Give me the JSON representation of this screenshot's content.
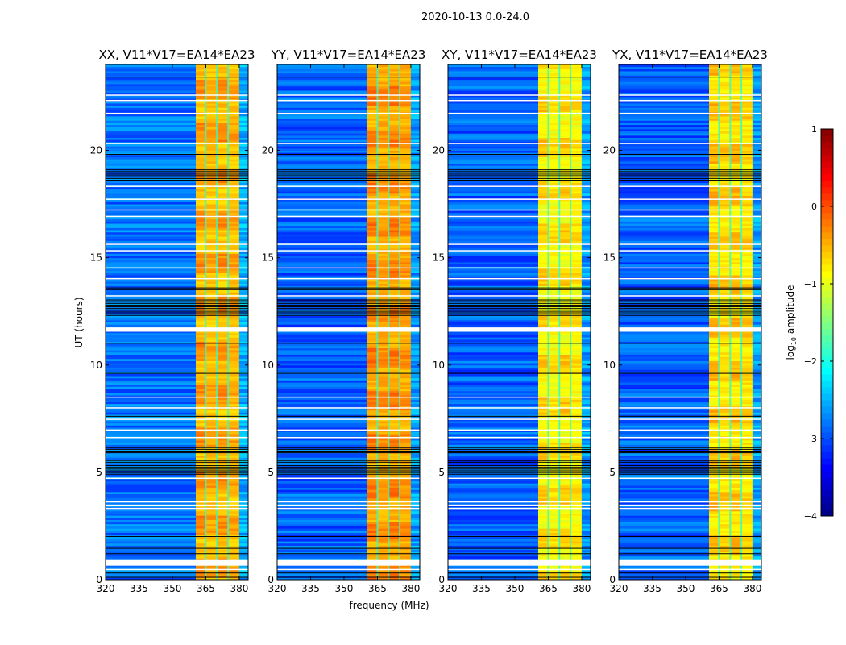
{
  "suptitle": "2020-10-13 0.0-24.0",
  "chart_data": {
    "type": "heatmap",
    "xlabel": "frequency (MHz)",
    "ylabel": "UT (hours)",
    "xlim": [
      320,
      384
    ],
    "ylim": [
      0,
      24
    ],
    "xticks": [
      "320",
      "335",
      "350",
      "365",
      "380"
    ],
    "xtick_values": [
      320,
      335,
      350,
      365,
      380
    ],
    "yticks": [
      "0",
      "5",
      "10",
      "15",
      "20"
    ],
    "ytick_values": [
      0,
      5,
      10,
      15,
      20
    ],
    "colorbar": {
      "label_prefix": "log",
      "label_sub": "10",
      "label_suffix": " amplitude",
      "range": [
        -4,
        1
      ],
      "ticks": [
        "1",
        "0",
        "−1",
        "−2",
        "−3",
        "−4"
      ],
      "tick_values": [
        1,
        0,
        -1,
        -2,
        -3,
        -4
      ],
      "colormap": "jet"
    },
    "panels": [
      {
        "title": "XX, V11*V17=EA14*EA23",
        "background_level": -2.8,
        "band_level": -0.6
      },
      {
        "title": "YY, V11*V17=EA14*EA23",
        "background_level": -2.9,
        "band_level": -0.5
      },
      {
        "title": "XY, V11*V17=EA14*EA23",
        "background_level": -2.9,
        "band_level": -0.9
      },
      {
        "title": "YX, V11*V17=EA14*EA23",
        "background_level": -2.9,
        "band_level": -0.8
      }
    ],
    "rfi_band_mhz": [
      360.5,
      380
    ],
    "band_notches_mhz": [
      365,
      370,
      375
    ],
    "flagged_hours_white": [
      [
        0.65,
        0.95
      ],
      [
        0.45,
        0.5
      ],
      [
        3.3,
        3.35
      ],
      [
        3.45,
        3.5
      ],
      [
        3.6,
        3.65
      ],
      [
        4.7,
        4.75
      ],
      [
        6.6,
        6.65
      ],
      [
        6.95,
        7.0
      ],
      [
        7.45,
        7.5
      ],
      [
        8.0,
        8.03
      ],
      [
        8.5,
        8.53
      ],
      [
        11.55,
        11.75
      ],
      [
        13.2,
        13.25
      ],
      [
        14.0,
        14.05
      ],
      [
        14.5,
        14.55
      ],
      [
        15.3,
        15.35
      ],
      [
        15.6,
        15.65
      ],
      [
        16.9,
        16.95
      ],
      [
        17.2,
        17.25
      ],
      [
        17.7,
        17.75
      ],
      [
        18.3,
        18.35
      ],
      [
        20.3,
        20.35
      ],
      [
        21.7,
        21.75
      ],
      [
        22.3,
        22.35
      ],
      [
        22.55,
        22.6
      ]
    ],
    "flagged_hours_black": [
      [
        0.1,
        0.15
      ],
      [
        0.3,
        0.33
      ],
      [
        1.2,
        1.25
      ],
      [
        1.45,
        1.5
      ],
      [
        2.0,
        2.05
      ],
      [
        4.9,
        5.6
      ],
      [
        5.9,
        6.2
      ],
      [
        7.6,
        7.65
      ],
      [
        9.6,
        9.65
      ],
      [
        11.0,
        11.03
      ],
      [
        12.3,
        13.1
      ],
      [
        13.5,
        13.6
      ],
      [
        18.6,
        19.1
      ],
      [
        19.8,
        19.85
      ],
      [
        23.4,
        23.45
      ]
    ]
  }
}
